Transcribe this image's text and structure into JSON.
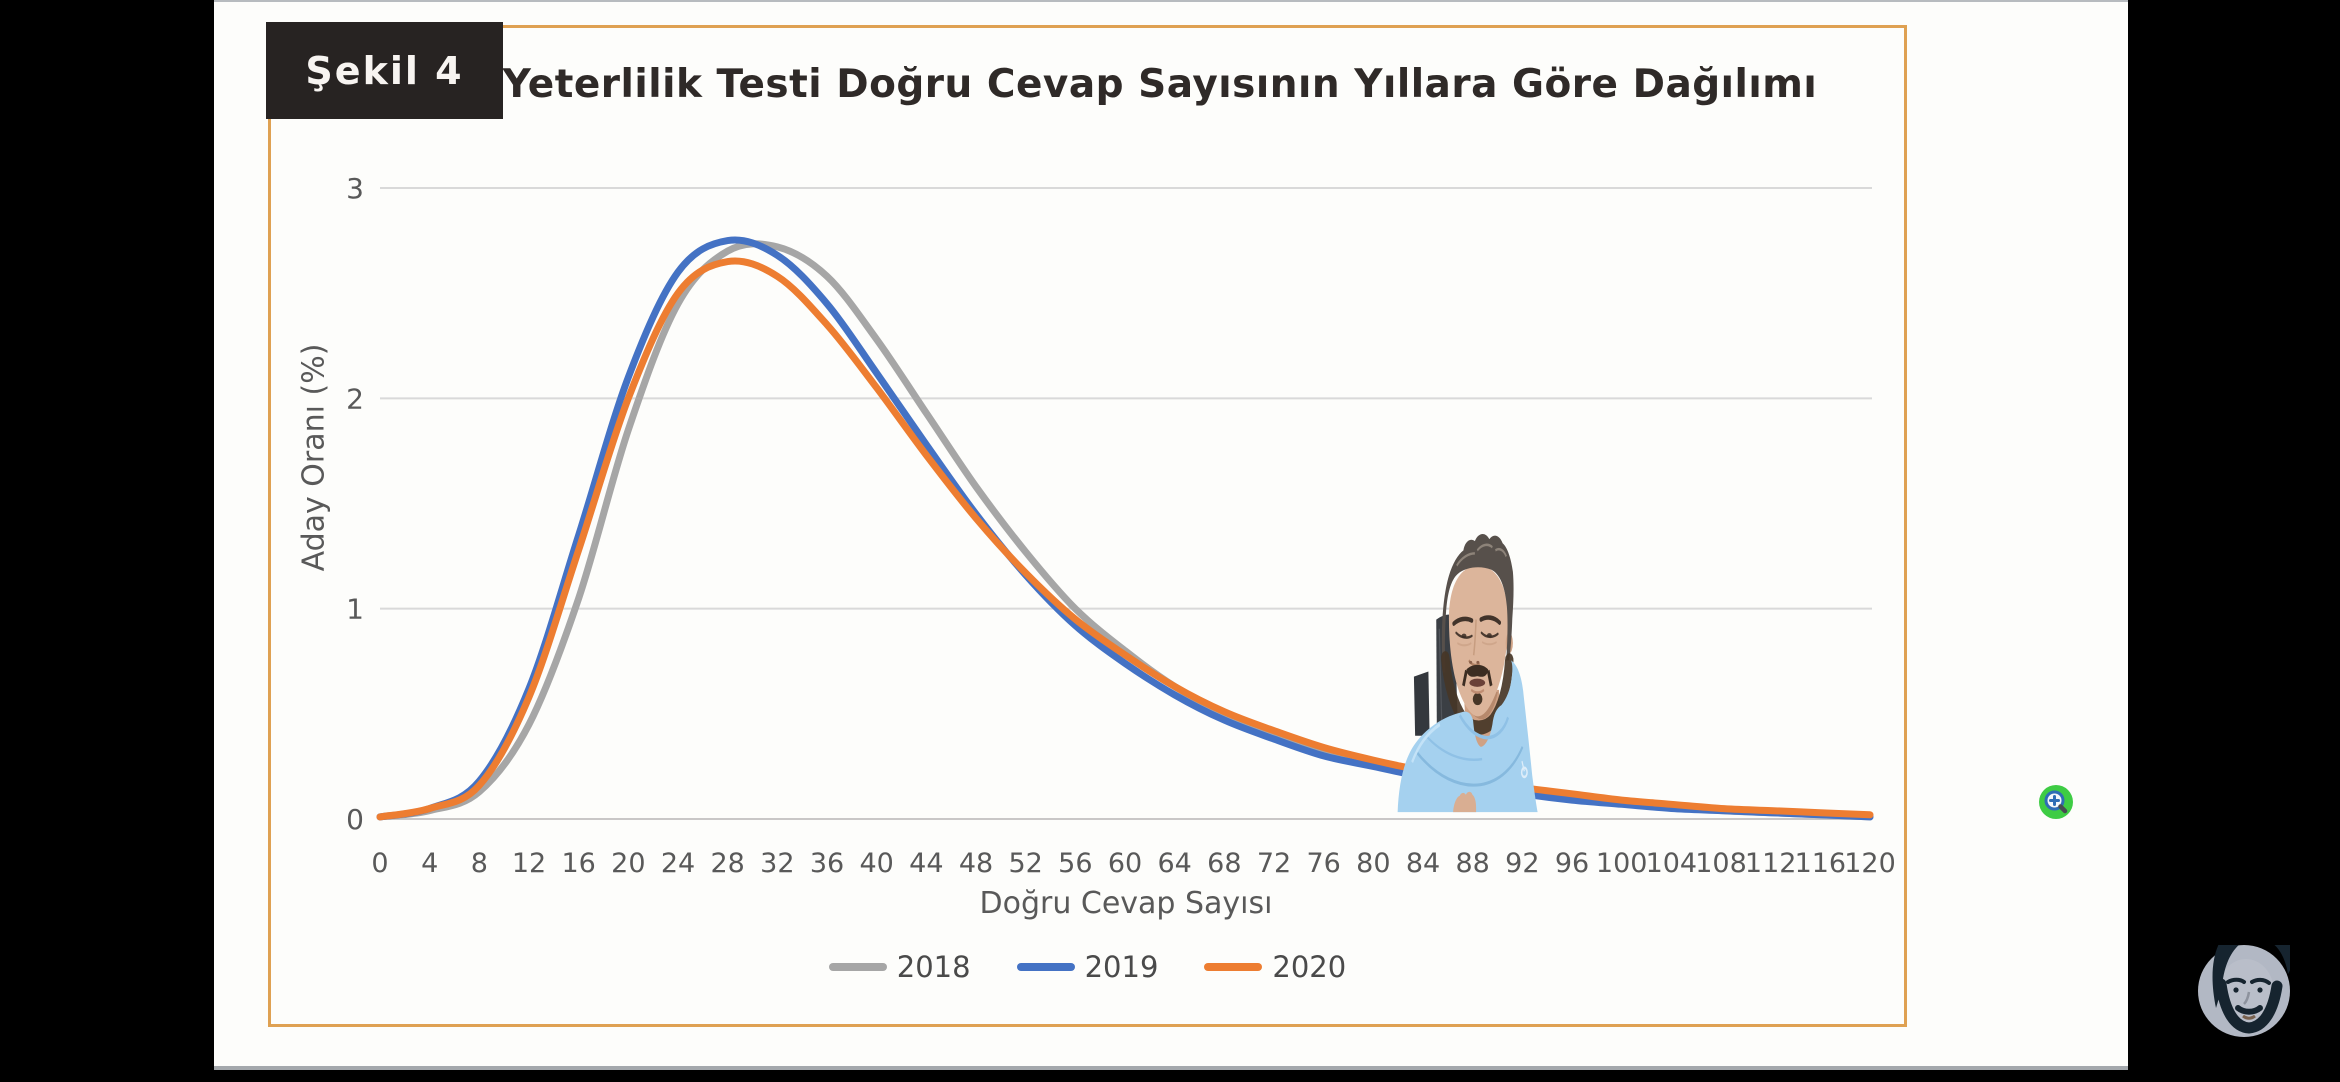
{
  "figure": {
    "label": "Şekil 4",
    "border_color": "#dfa152",
    "label_bg": "#272322"
  },
  "chart_data": {
    "type": "line",
    "title": "Temel Yeterlilik Testi Doğru Cevap Sayısının Yıllara Göre Dağılımı",
    "xlabel": "Doğru Cevap Sayısı",
    "ylabel": "Aday Oranı (%)",
    "xlim": [
      0,
      120
    ],
    "ylim": [
      0,
      3
    ],
    "x_ticks": [
      0,
      4,
      8,
      12,
      16,
      20,
      24,
      28,
      32,
      36,
      40,
      44,
      48,
      52,
      56,
      60,
      64,
      68,
      72,
      76,
      80,
      84,
      88,
      92,
      96,
      100,
      104,
      108,
      112,
      116,
      120
    ],
    "y_ticks": [
      0,
      1,
      2,
      3
    ],
    "grid": true,
    "gridline_color": "#d9d9d9",
    "legend_position": "bottom",
    "x": [
      0,
      4,
      8,
      12,
      16,
      20,
      24,
      28,
      32,
      36,
      40,
      44,
      48,
      52,
      56,
      60,
      64,
      68,
      72,
      76,
      80,
      84,
      88,
      92,
      96,
      100,
      104,
      108,
      112,
      116,
      120
    ],
    "series": [
      {
        "name": "2018",
        "color": "#A6A6A6",
        "values": [
          0.01,
          0.04,
          0.13,
          0.45,
          1.05,
          1.85,
          2.45,
          2.7,
          2.72,
          2.58,
          2.28,
          1.93,
          1.58,
          1.27,
          1.0,
          0.8,
          0.63,
          0.5,
          0.4,
          0.32,
          0.26,
          0.21,
          0.17,
          0.13,
          0.1,
          0.08,
          0.06,
          0.04,
          0.03,
          0.02,
          0.01
        ]
      },
      {
        "name": "2019",
        "color": "#4472C4",
        "values": [
          0.01,
          0.05,
          0.18,
          0.62,
          1.35,
          2.1,
          2.6,
          2.75,
          2.68,
          2.45,
          2.12,
          1.78,
          1.45,
          1.16,
          0.92,
          0.74,
          0.59,
          0.47,
          0.38,
          0.3,
          0.25,
          0.2,
          0.16,
          0.12,
          0.09,
          0.07,
          0.05,
          0.04,
          0.03,
          0.02,
          0.01
        ]
      },
      {
        "name": "2020",
        "color": "#ED7D31",
        "values": [
          0.01,
          0.05,
          0.16,
          0.58,
          1.28,
          2.0,
          2.5,
          2.65,
          2.58,
          2.35,
          2.05,
          1.73,
          1.43,
          1.17,
          0.95,
          0.78,
          0.63,
          0.51,
          0.42,
          0.34,
          0.28,
          0.23,
          0.19,
          0.15,
          0.12,
          0.09,
          0.07,
          0.05,
          0.04,
          0.03,
          0.02
        ]
      }
    ]
  },
  "overlay": {
    "zoom_icon_green": "#3ecc44",
    "zoom_icon_blue": "#2f6db5",
    "webcam_hoodie_color": "#a5d1ef",
    "avatar_circle_color": "#b2b8c4"
  }
}
